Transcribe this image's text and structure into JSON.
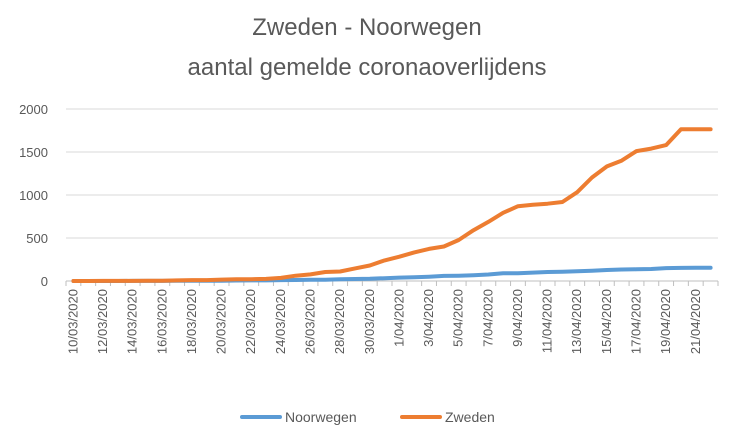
{
  "chart_data": {
    "type": "line",
    "title": "Zweden - Noorwegen",
    "subtitle": "aantal gemelde coronaoverlijdens",
    "xlabel": "",
    "ylabel": "",
    "ylim": [
      0,
      2000
    ],
    "yticks": [
      "0",
      "500",
      "1000",
      "1500",
      "2000"
    ],
    "grid": true,
    "legend_position": "bottom",
    "x": [
      "10/03/2020",
      "11/03/2020",
      "12/03/2020",
      "13/03/2020",
      "14/03/2020",
      "15/03/2020",
      "16/03/2020",
      "17/03/2020",
      "18/03/2020",
      "19/03/2020",
      "20/03/2020",
      "21/03/2020",
      "22/03/2020",
      "23/03/2020",
      "24/03/2020",
      "25/03/2020",
      "26/03/2020",
      "27/03/2020",
      "28/03/2020",
      "29/03/2020",
      "30/03/2020",
      "31/03/2020",
      "1/04/2020",
      "2/04/2020",
      "3/04/2020",
      "4/04/2020",
      "5/04/2020",
      "6/04/2020",
      "7/04/2020",
      "8/04/2020",
      "9/04/2020",
      "10/04/2020",
      "11/04/2020",
      "12/04/2020",
      "13/04/2020",
      "14/04/2020",
      "15/04/2020",
      "16/04/2020",
      "17/04/2020",
      "18/04/2020",
      "19/04/2020",
      "20/04/2020",
      "21/04/2020",
      "22/04/2020"
    ],
    "x_tick_labels_shown": [
      "10/03/2020",
      "12/03/2020",
      "14/03/2020",
      "16/03/2020",
      "18/03/2020",
      "20/03/2020",
      "22/03/2020",
      "24/03/2020",
      "26/03/2020",
      "28/03/2020",
      "30/03/2020",
      "1/04/2020",
      "3/04/2020",
      "5/04/2020",
      "7/04/2020",
      "9/04/2020",
      "11/04/2020",
      "13/04/2020",
      "15/04/2020",
      "17/04/2020",
      "19/04/2020",
      "21/04/2020"
    ],
    "series": [
      {
        "name": "Noorwegen",
        "color": "#5b9bd5",
        "values": [
          0,
          0,
          0,
          0,
          1,
          1,
          1,
          2,
          3,
          3,
          4,
          6,
          7,
          7,
          10,
          12,
          14,
          15,
          20,
          23,
          26,
          32,
          39,
          44,
          50,
          59,
          62,
          68,
          76,
          89,
          91,
          98,
          105,
          108,
          113,
          119,
          128,
          134,
          136,
          139,
          150,
          152,
          154,
          155
        ]
      },
      {
        "name": "Zweden",
        "color": "#ed7d31",
        "values": [
          0,
          0,
          1,
          1,
          1,
          2,
          3,
          7,
          10,
          11,
          16,
          20,
          21,
          25,
          36,
          62,
          77,
          105,
          110,
          146,
          180,
          239,
          282,
          333,
          373,
          401,
          477,
          591,
          687,
          793,
          870,
          887,
          899,
          919,
          1033,
          1203,
          1333,
          1400,
          1511,
          1540,
          1580,
          1765,
          1765,
          1765
        ]
      }
    ]
  }
}
